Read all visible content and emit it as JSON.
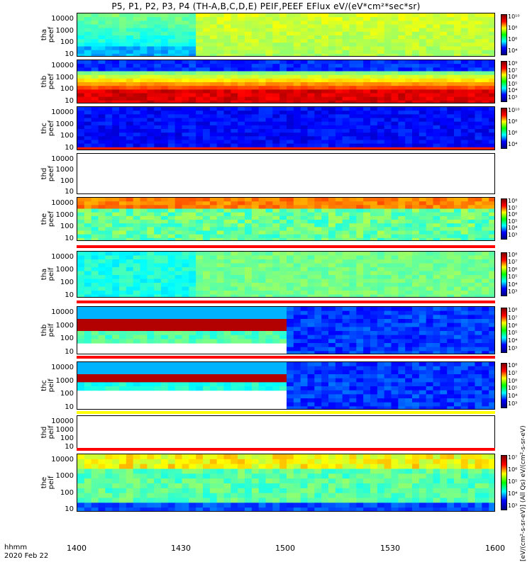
{
  "title": "P5, P1, P2, P3, P4 (TH-A,B,C,D,E) PEIF,PEEF EFlux eV/(eV*cm²*sec*sr)",
  "x_axis": {
    "label_line1": "hhmm",
    "label_line2": "2020 Feb 22",
    "ticks": [
      "1400",
      "1430",
      "1500",
      "1530",
      "1600"
    ]
  },
  "y_ticks": [
    "10000",
    "1000",
    "100",
    "10"
  ],
  "colorbar_unit_label": "[eV/(cm²-s-sr-eV)] (All Qs) eV/(cm²-s-sr-eV)",
  "chart_data": {
    "type": "heatmap",
    "x_range": [
      "14:00",
      "16:00"
    ],
    "y_scale": "log",
    "y_range": [
      5,
      30000
    ],
    "panels": [
      {
        "id": "tha_peef",
        "label": "tha\npeef",
        "has_data": true,
        "colorbar_ticks": [
          "10¹⁰",
          "10⁸",
          "10⁶",
          "10⁴"
        ]
      },
      {
        "id": "thb_peef",
        "label": "thb\npeef",
        "has_data": true,
        "colorbar_ticks": [
          "10⁹",
          "10⁷",
          "10⁶",
          "10⁵",
          "10⁴",
          "10³"
        ]
      },
      {
        "id": "thc_peef",
        "label": "thc\npeef",
        "has_data": true,
        "colorbar_ticks": [
          "10¹⁰",
          "10⁸",
          "10⁶",
          "10⁴"
        ]
      },
      {
        "id": "thd_peef",
        "label": "thd\npeef",
        "has_data": false,
        "colorbar_ticks": []
      },
      {
        "id": "the_peef",
        "label": "the\npeef",
        "has_data": true,
        "colorbar_ticks": [
          "10⁸",
          "10⁷",
          "10⁶",
          "10⁵",
          "10⁴",
          "10³"
        ]
      },
      {
        "id": "tha_peif",
        "label": "tha\npeif",
        "has_data": true,
        "colorbar_ticks": [
          "10⁸",
          "10⁷",
          "10⁶",
          "10⁵",
          "10⁴",
          "10³"
        ]
      },
      {
        "id": "thb_peif",
        "label": "thb\npeif",
        "has_data": true,
        "colorbar_ticks": [
          "10⁸",
          "10⁷",
          "10⁶",
          "10⁵",
          "10⁴",
          "10³"
        ]
      },
      {
        "id": "thc_peif",
        "label": "thc\npeif",
        "has_data": true,
        "colorbar_ticks": [
          "10⁸",
          "10⁷",
          "10⁶",
          "10⁵",
          "10⁴",
          "10³"
        ]
      },
      {
        "id": "thd_peif",
        "label": "thd\npeif",
        "has_data": false,
        "colorbar_ticks": []
      },
      {
        "id": "the_peif",
        "label": "the\npeif",
        "has_data": true,
        "colorbar_ticks": [
          "10⁷",
          "10⁶",
          "10⁵",
          "10⁴",
          "10³"
        ]
      }
    ]
  }
}
